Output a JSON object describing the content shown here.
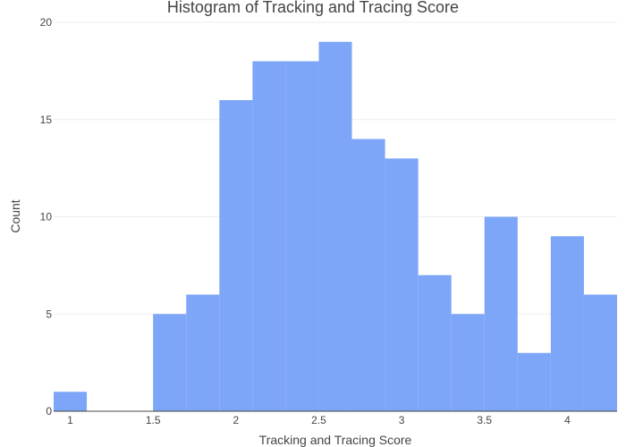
{
  "chart_data": {
    "type": "bar",
    "title": "Histogram of Tracking and Tracing Score",
    "xlabel": "Tracking and Tracing Score",
    "ylabel": "Count",
    "bin_width": 0.2,
    "bins": [
      {
        "start": 0.9,
        "end": 1.1,
        "count": 1
      },
      {
        "start": 1.1,
        "end": 1.3,
        "count": 0
      },
      {
        "start": 1.3,
        "end": 1.5,
        "count": 0
      },
      {
        "start": 1.5,
        "end": 1.7,
        "count": 5
      },
      {
        "start": 1.7,
        "end": 1.9,
        "count": 6
      },
      {
        "start": 1.9,
        "end": 2.1,
        "count": 16
      },
      {
        "start": 2.1,
        "end": 2.3,
        "count": 18
      },
      {
        "start": 2.3,
        "end": 2.5,
        "count": 18
      },
      {
        "start": 2.5,
        "end": 2.7,
        "count": 19
      },
      {
        "start": 2.7,
        "end": 2.9,
        "count": 14
      },
      {
        "start": 2.9,
        "end": 3.1,
        "count": 13
      },
      {
        "start": 3.1,
        "end": 3.3,
        "count": 7
      },
      {
        "start": 3.3,
        "end": 3.5,
        "count": 5
      },
      {
        "start": 3.5,
        "end": 3.7,
        "count": 10
      },
      {
        "start": 3.7,
        "end": 3.9,
        "count": 3
      },
      {
        "start": 3.9,
        "end": 4.1,
        "count": 9
      },
      {
        "start": 4.1,
        "end": 4.3,
        "count": 6
      }
    ],
    "xlim": [
      0.9,
      4.3
    ],
    "ylim": [
      0,
      20
    ],
    "x_ticks": [
      1,
      1.5,
      2,
      2.5,
      3,
      3.5,
      4
    ],
    "x_tick_labels": [
      "1",
      "1.5",
      "2",
      "2.5",
      "3",
      "3.5",
      "4"
    ],
    "y_ticks": [
      0,
      5,
      10,
      15,
      20
    ],
    "y_tick_labels": [
      "0",
      "5",
      "10",
      "15",
      "20"
    ],
    "grid": true,
    "bar_color": "#7ea6f8",
    "gridline_color": "#eeeeee"
  }
}
